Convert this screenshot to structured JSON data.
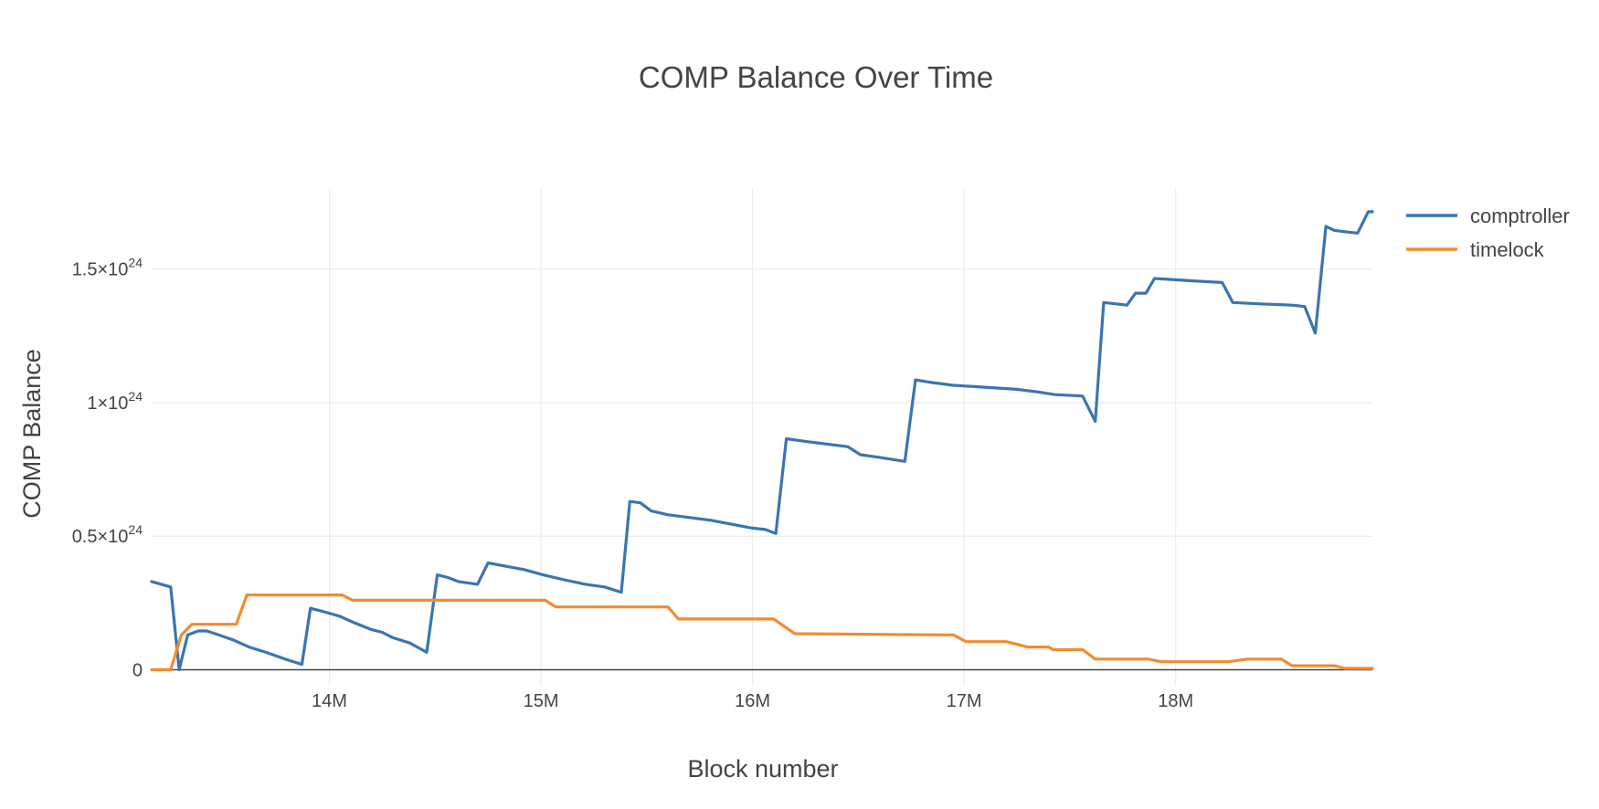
{
  "chart_data": {
    "type": "line",
    "title": "COMP Balance Over Time",
    "xlabel": "Block number",
    "ylabel": "COMP Balance",
    "xlim": [
      13160000,
      18930000
    ],
    "ylim": [
      -0.06,
      1.8
    ],
    "grid": true,
    "legend_position": "top-right",
    "x_ticks": [
      {
        "value": 14000000,
        "label": "14M"
      },
      {
        "value": 15000000,
        "label": "15M"
      },
      {
        "value": 16000000,
        "label": "16M"
      },
      {
        "value": 17000000,
        "label": "17M"
      },
      {
        "value": 18000000,
        "label": "18M"
      }
    ],
    "y_ticks": [
      {
        "value": 0,
        "base": "0",
        "exp": ""
      },
      {
        "value": 0.5,
        "base": "0.5×10",
        "exp": "24"
      },
      {
        "value": 1.0,
        "base": "1×10",
        "exp": "24"
      },
      {
        "value": 1.5,
        "base": "1.5×10",
        "exp": "24"
      }
    ],
    "y_unit_note": "×10^24",
    "series": [
      {
        "name": "comptroller",
        "color": "#3a75b0",
        "points": [
          [
            13160000,
            0.33
          ],
          [
            13250000,
            0.31
          ],
          [
            13290000,
            0.0
          ],
          [
            13330000,
            0.13
          ],
          [
            13380000,
            0.145
          ],
          [
            13420000,
            0.145
          ],
          [
            13460000,
            0.135
          ],
          [
            13550000,
            0.11
          ],
          [
            13620000,
            0.085
          ],
          [
            13700000,
            0.065
          ],
          [
            13790000,
            0.04
          ],
          [
            13870000,
            0.02
          ],
          [
            13910000,
            0.23
          ],
          [
            13960000,
            0.22
          ],
          [
            14050000,
            0.2
          ],
          [
            14120000,
            0.175
          ],
          [
            14200000,
            0.15
          ],
          [
            14250000,
            0.14
          ],
          [
            14300000,
            0.12
          ],
          [
            14380000,
            0.1
          ],
          [
            14460000,
            0.065
          ],
          [
            14510000,
            0.355
          ],
          [
            14560000,
            0.345
          ],
          [
            14610000,
            0.33
          ],
          [
            14700000,
            0.32
          ],
          [
            14750000,
            0.4
          ],
          [
            14850000,
            0.385
          ],
          [
            14920000,
            0.375
          ],
          [
            15010000,
            0.355
          ],
          [
            15120000,
            0.335
          ],
          [
            15210000,
            0.32
          ],
          [
            15300000,
            0.31
          ],
          [
            15380000,
            0.29
          ],
          [
            15420000,
            0.63
          ],
          [
            15470000,
            0.625
          ],
          [
            15520000,
            0.595
          ],
          [
            15600000,
            0.58
          ],
          [
            15700000,
            0.57
          ],
          [
            15800000,
            0.56
          ],
          [
            15900000,
            0.545
          ],
          [
            16000000,
            0.53
          ],
          [
            16060000,
            0.525
          ],
          [
            16110000,
            0.51
          ],
          [
            16160000,
            0.865
          ],
          [
            16250000,
            0.855
          ],
          [
            16350000,
            0.845
          ],
          [
            16450000,
            0.835
          ],
          [
            16510000,
            0.805
          ],
          [
            16600000,
            0.795
          ],
          [
            16720000,
            0.78
          ],
          [
            16770000,
            1.085
          ],
          [
            16850000,
            1.075
          ],
          [
            16950000,
            1.065
          ],
          [
            17050000,
            1.06
          ],
          [
            17150000,
            1.055
          ],
          [
            17250000,
            1.05
          ],
          [
            17350000,
            1.04
          ],
          [
            17430000,
            1.03
          ],
          [
            17560000,
            1.025
          ],
          [
            17620000,
            0.93
          ],
          [
            17660000,
            1.375
          ],
          [
            17720000,
            1.37
          ],
          [
            17770000,
            1.365
          ],
          [
            17810000,
            1.41
          ],
          [
            17860000,
            1.41
          ],
          [
            17900000,
            1.465
          ],
          [
            18000000,
            1.46
          ],
          [
            18100000,
            1.455
          ],
          [
            18220000,
            1.45
          ],
          [
            18270000,
            1.375
          ],
          [
            18400000,
            1.37
          ],
          [
            18550000,
            1.365
          ],
          [
            18610000,
            1.36
          ],
          [
            18660000,
            1.26
          ],
          [
            18710000,
            1.66
          ],
          [
            18750000,
            1.645
          ],
          [
            18800000,
            1.64
          ],
          [
            18860000,
            1.635
          ],
          [
            18910000,
            1.715
          ],
          [
            18930000,
            1.715
          ]
        ]
      },
      {
        "name": "timelock",
        "color": "#f28b30",
        "points": [
          [
            13160000,
            0.0
          ],
          [
            13250000,
            0.0
          ],
          [
            13300000,
            0.13
          ],
          [
            13350000,
            0.17
          ],
          [
            13560000,
            0.17
          ],
          [
            13610000,
            0.28
          ],
          [
            14060000,
            0.28
          ],
          [
            14110000,
            0.26
          ],
          [
            15020000,
            0.26
          ],
          [
            15070000,
            0.235
          ],
          [
            15600000,
            0.235
          ],
          [
            15650000,
            0.19
          ],
          [
            16100000,
            0.19
          ],
          [
            16200000,
            0.135
          ],
          [
            16950000,
            0.13
          ],
          [
            17010000,
            0.105
          ],
          [
            17200000,
            0.105
          ],
          [
            17300000,
            0.085
          ],
          [
            17400000,
            0.085
          ],
          [
            17420000,
            0.075
          ],
          [
            17560000,
            0.075
          ],
          [
            17620000,
            0.04
          ],
          [
            17870000,
            0.04
          ],
          [
            17930000,
            0.03
          ],
          [
            18250000,
            0.03
          ],
          [
            18340000,
            0.04
          ],
          [
            18500000,
            0.04
          ],
          [
            18550000,
            0.015
          ],
          [
            18750000,
            0.015
          ],
          [
            18800000,
            0.005
          ],
          [
            18930000,
            0.005
          ]
        ]
      }
    ]
  }
}
